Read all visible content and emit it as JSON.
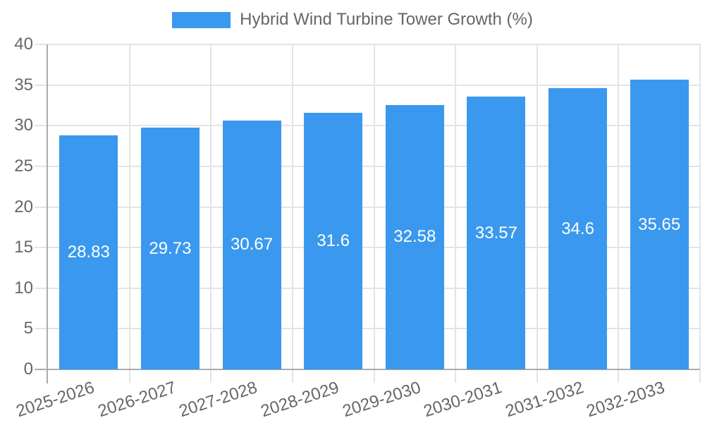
{
  "chart_data": {
    "type": "bar",
    "title": "Hybrid Wind Turbine Tower Growth (%)",
    "categories": [
      "2025-2026",
      "2026-2027",
      "2027-2028",
      "2028-2029",
      "2029-2030",
      "2030-2031",
      "2031-2032",
      "2032-2033"
    ],
    "values": [
      28.83,
      29.73,
      30.67,
      31.6,
      32.58,
      33.57,
      34.6,
      35.65
    ],
    "value_labels": [
      "28.83",
      "29.73",
      "30.67",
      "31.6",
      "32.58",
      "33.57",
      "34.6",
      "35.65"
    ],
    "xlabel": "",
    "ylabel": "",
    "ylim": [
      0,
      40
    ],
    "ytick_step": 5,
    "ytick_labels": [
      "0",
      "5",
      "10",
      "15",
      "20",
      "25",
      "30",
      "35",
      "40"
    ],
    "grid": true,
    "legend_position": "top",
    "x_label_rotation_deg": -18,
    "colors": {
      "bar": "#3A99EE",
      "value_label": "#FFFFFF",
      "axis_line": "#ACACAC",
      "grid_line": "#E4E4E4",
      "text": "#666666",
      "background": "#FFFFFF"
    }
  }
}
